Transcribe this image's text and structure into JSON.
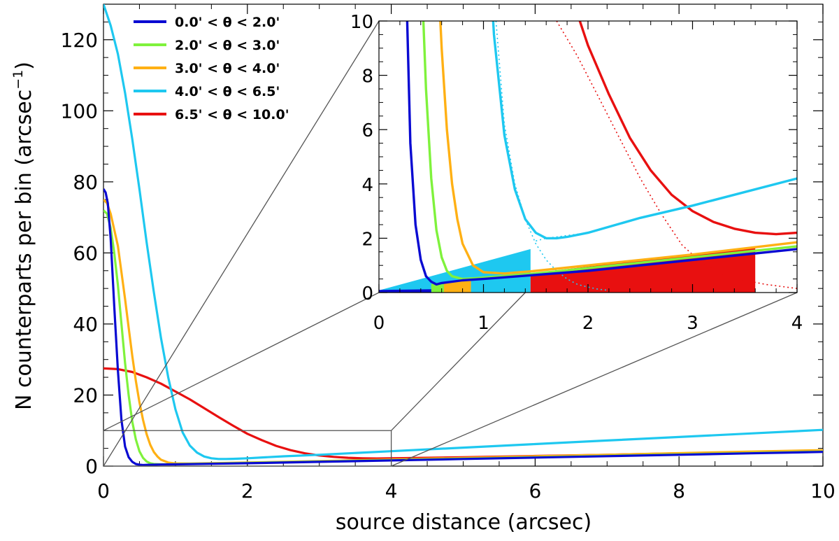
{
  "chart_data": {
    "type": "line",
    "title": "",
    "xlabel": "source distance (arcsec)",
    "ylabel_main": "N counterparts per bin (arcsec",
    "ylabel_exp": "−1",
    "ylabel_close": ")",
    "xlim": [
      0,
      10
    ],
    "ylim": [
      0,
      130
    ],
    "xticks": [
      0,
      2,
      4,
      6,
      8,
      10
    ],
    "xtick_labels": [
      "0",
      "2",
      "4",
      "6",
      "8",
      "10"
    ],
    "yticks": [
      0,
      20,
      40,
      60,
      80,
      100,
      120
    ],
    "ytick_labels": [
      "0",
      "20",
      "40",
      "60",
      "80",
      "100",
      "120"
    ],
    "legend_position": "top-left",
    "series": [
      {
        "name": "0.0' < θ < 2.0'",
        "color": "#0a0ad2",
        "x": [
          0,
          0.03,
          0.06,
          0.1,
          0.15,
          0.2,
          0.25,
          0.3,
          0.35,
          0.4,
          0.45,
          0.5,
          0.55,
          0.6,
          0.7,
          0.8,
          1,
          1.5,
          2,
          3,
          4,
          5,
          6,
          7,
          8,
          9,
          10
        ],
        "y": [
          78,
          77,
          74,
          64,
          45,
          27,
          13,
          5.5,
          2.5,
          1.2,
          0.6,
          0.4,
          0.3,
          0.35,
          0.4,
          0.45,
          0.5,
          0.65,
          0.8,
          1.2,
          1.6,
          2,
          2.4,
          2.8,
          3.2,
          3.6,
          4
        ]
      },
      {
        "name": "2.0' < θ < 3.0'",
        "color": "#7ff23c",
        "x": [
          0,
          0.05,
          0.1,
          0.15,
          0.2,
          0.25,
          0.3,
          0.35,
          0.4,
          0.45,
          0.5,
          0.55,
          0.6,
          0.65,
          0.7,
          0.8,
          0.9,
          1,
          1.5,
          2,
          3,
          4,
          5,
          6,
          7,
          8,
          9,
          10
        ],
        "y": [
          72,
          71,
          67,
          60,
          51,
          40,
          29,
          20,
          12.5,
          7.5,
          4.2,
          2.3,
          1.3,
          0.8,
          0.6,
          0.5,
          0.52,
          0.55,
          0.7,
          0.9,
          1.3,
          1.7,
          2.1,
          2.5,
          2.9,
          3.3,
          3.7,
          4.1
        ]
      },
      {
        "name": "3.0' < θ < 4.0'",
        "color": "#ffb014",
        "x": [
          0,
          0.05,
          0.1,
          0.2,
          0.3,
          0.35,
          0.4,
          0.45,
          0.5,
          0.55,
          0.6,
          0.65,
          0.7,
          0.75,
          0.8,
          0.9,
          1,
          1.2,
          1.5,
          2,
          3,
          4,
          5,
          6,
          7,
          8,
          9,
          10
        ],
        "y": [
          75,
          74,
          71,
          62,
          47,
          39,
          31,
          24,
          18,
          13,
          9,
          6,
          4,
          2.7,
          1.8,
          1,
          0.75,
          0.7,
          0.8,
          1,
          1.4,
          1.85,
          2.3,
          2.75,
          3.2,
          3.65,
          4.1,
          4.5
        ]
      },
      {
        "name": "4.0' < θ < 6.5'",
        "color": "#1ec8f0",
        "x": [
          0,
          0.1,
          0.2,
          0.3,
          0.4,
          0.5,
          0.6,
          0.7,
          0.8,
          0.9,
          1,
          1.1,
          1.2,
          1.3,
          1.4,
          1.5,
          1.6,
          1.7,
          1.8,
          2,
          2.5,
          3,
          4,
          5,
          6,
          7,
          8,
          9,
          10
        ],
        "y": [
          130,
          124,
          116,
          105,
          92,
          78,
          63,
          49,
          36,
          25,
          16,
          9.5,
          5.8,
          3.8,
          2.7,
          2.2,
          2,
          2,
          2.05,
          2.2,
          2.75,
          3.2,
          4.2,
          5.2,
          6.2,
          7.2,
          8.2,
          9.2,
          10.2
        ]
      },
      {
        "name": "6.5' < θ < 10.0'",
        "color": "#e81010",
        "x": [
          0,
          0.2,
          0.4,
          0.6,
          0.8,
          1,
          1.2,
          1.4,
          1.6,
          1.8,
          2,
          2.2,
          2.4,
          2.6,
          2.8,
          3,
          3.2,
          3.4,
          3.6,
          3.8,
          4,
          4.5,
          5,
          6,
          7,
          8,
          9,
          10
        ],
        "y": [
          27.5,
          27.3,
          26.5,
          25,
          23.2,
          21,
          18.8,
          16.3,
          13.8,
          11.4,
          9.1,
          7.3,
          5.7,
          4.5,
          3.6,
          3,
          2.6,
          2.35,
          2.2,
          2.15,
          2.2,
          2.35,
          2.5,
          2.85,
          3.2,
          3.6,
          4,
          4.4
        ]
      }
    ],
    "inset": {
      "xlim": [
        0,
        4
      ],
      "ylim": [
        0,
        10
      ],
      "xticks": [
        0,
        1,
        2,
        3,
        4
      ],
      "xtick_labels": [
        "0",
        "1",
        "2",
        "3",
        "4"
      ],
      "yticks": [
        0,
        2,
        4,
        6,
        8,
        10
      ],
      "ytick_labels": [
        "0",
        "2",
        "4",
        "6",
        "8",
        "10"
      ],
      "dotted_curves": [
        {
          "color": "#1ec8f0",
          "x": [
            1.12,
            1.2,
            1.3,
            1.4,
            1.5,
            1.6,
            1.7,
            1.8,
            1.9,
            2,
            2.1,
            2.2
          ],
          "y": [
            10,
            6.2,
            4,
            2.7,
            1.8,
            1.2,
            0.8,
            0.5,
            0.3,
            0.2,
            0.12,
            0.08
          ]
        },
        {
          "color": "#e81010",
          "x": [
            1.7,
            1.9,
            2.1,
            2.3,
            2.5,
            2.7,
            2.9,
            3.1,
            3.3,
            3.5,
            3.7,
            4
          ],
          "y": [
            10,
            8.7,
            7.2,
            5.7,
            4.2,
            2.9,
            1.75,
            1.05,
            0.65,
            0.45,
            0.3,
            0.15
          ]
        },
        {
          "color": "#1ec8f0",
          "x": [
            1.5,
            1.6,
            1.7,
            1.8,
            1.9,
            2
          ],
          "y": [
            1.9,
            2.0,
            2.05,
            2.1,
            2.15,
            2.2
          ]
        }
      ],
      "shaded_regions": [
        {
          "color": "#1ec8f0",
          "x": [
            0,
            1.45
          ],
          "y": [
            0,
            1.6
          ]
        },
        {
          "color": "#e81010",
          "x": [
            1.45,
            3.6
          ],
          "y": [
            0,
            1.7
          ]
        },
        {
          "color": "#ffb014",
          "x": [
            0.62,
            0.88
          ],
          "y": [
            0,
            0.5
          ]
        },
        {
          "color": "#7ff23c",
          "x": [
            0.5,
            0.62
          ],
          "y": [
            0,
            0.4
          ]
        },
        {
          "color": "#0a0ad2",
          "x": [
            0,
            0.5
          ],
          "y": [
            0,
            0.12
          ]
        }
      ],
      "zoom_box": {
        "x": [
          0,
          4
        ],
        "y": [
          0,
          10
        ]
      }
    }
  }
}
